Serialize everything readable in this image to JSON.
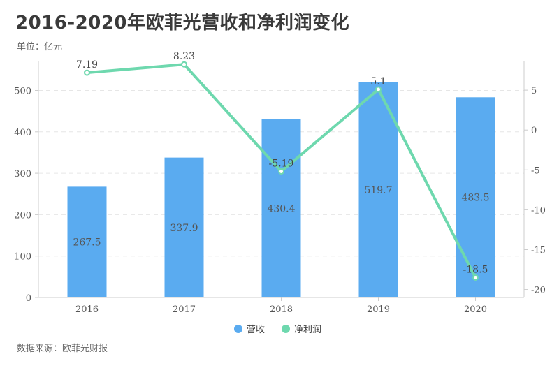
{
  "title": "2016-2020年欧菲光营收和净利润变化",
  "unit_label": "单位：亿元",
  "source_label": "数据来源：欧菲光财报",
  "colors": {
    "bar": "#5aabf0",
    "line": "#6ed8ae",
    "grid": "#e6e6e6",
    "axis": "#cccccc"
  },
  "chart_data": {
    "type": "bar",
    "categories": [
      "2016",
      "2017",
      "2018",
      "2019",
      "2020"
    ],
    "series": [
      {
        "name": "营收",
        "type": "bar",
        "axis": "left",
        "values": [
          267.5,
          337.9,
          430.4,
          519.7,
          483.5
        ],
        "labels": [
          "267.5",
          "337.9",
          "430.4",
          "519.7",
          "483.5"
        ]
      },
      {
        "name": "净利润",
        "type": "line",
        "axis": "right",
        "values": [
          7.19,
          8.23,
          -5.19,
          5.1,
          -18.5
        ],
        "labels": [
          "7.19",
          "8.23",
          "-5.19",
          "5.1",
          "-18.5"
        ]
      }
    ],
    "y_left": {
      "min": 0,
      "max": 570,
      "ticks": [
        0,
        100,
        200,
        300,
        400,
        500
      ]
    },
    "y_right": {
      "min": -21,
      "max": 8.6,
      "ticks": [
        5,
        0,
        -5,
        -10,
        -15,
        -20
      ]
    },
    "grid": true,
    "legend_position": "bottom-center"
  }
}
